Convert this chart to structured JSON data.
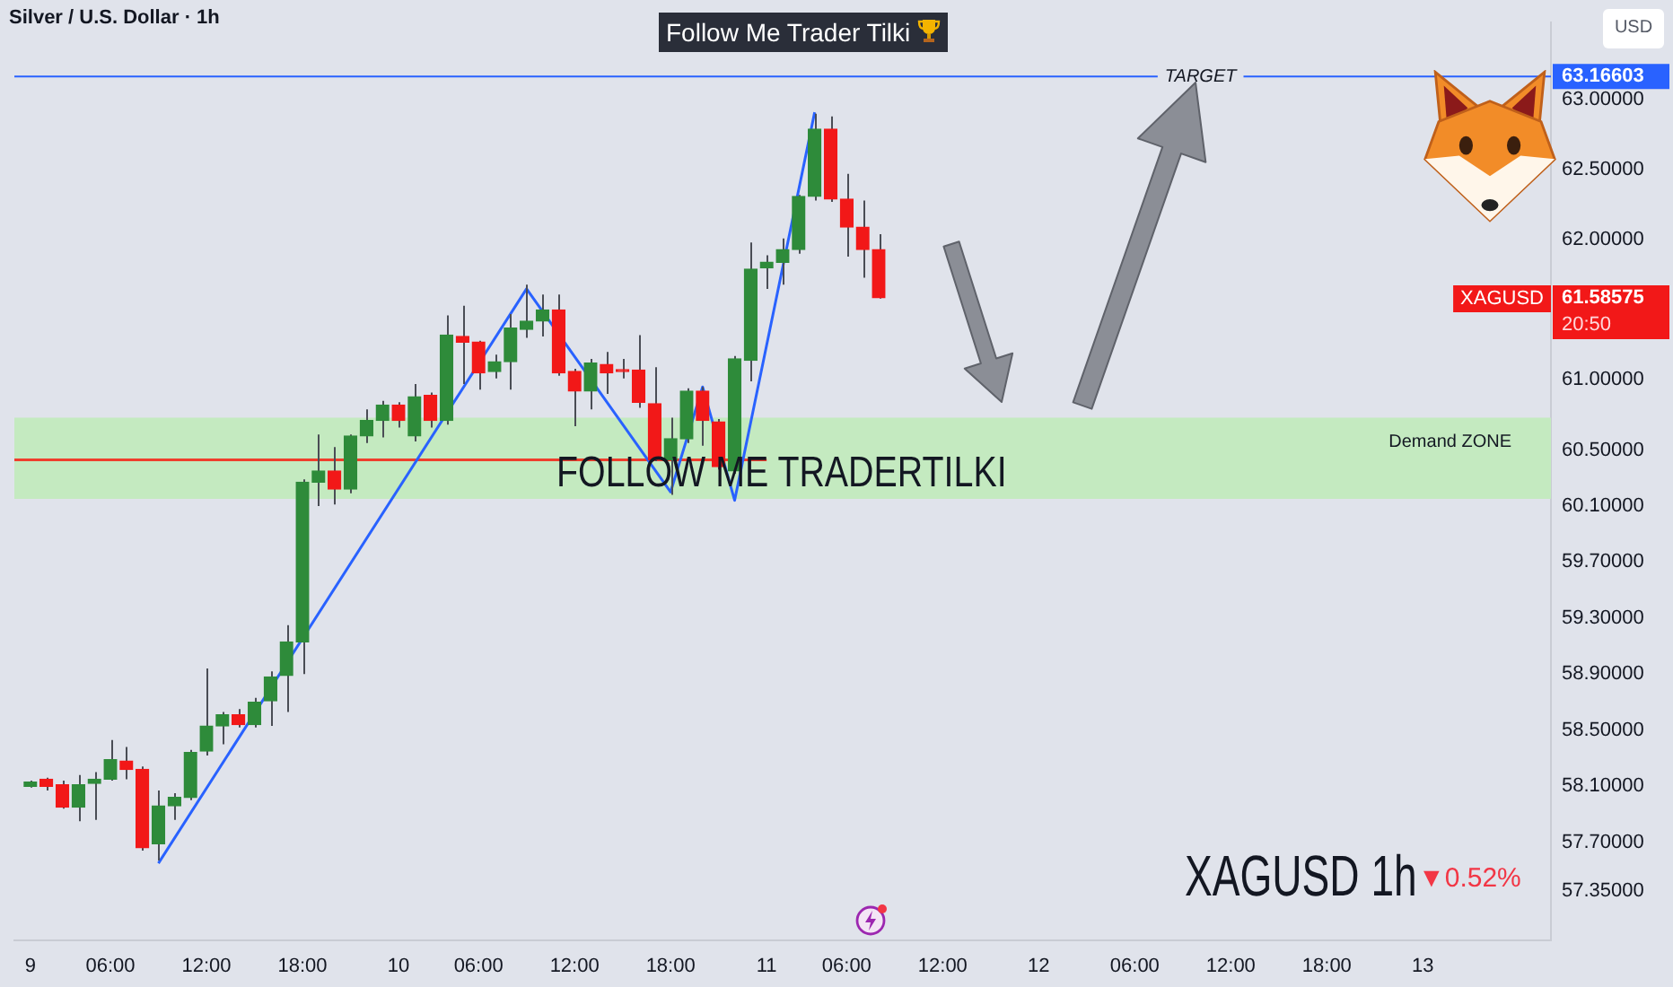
{
  "chart_data": {
    "type": "candlestick",
    "title": "Silver / U.S. Dollar · 1h",
    "subtitle": "Follow Me Trader Tilki",
    "ylabel": "USD",
    "categories": [
      null,
      "9",
      null,
      null,
      null,
      null,
      "06:00",
      null,
      null,
      null,
      null,
      null,
      "12:00",
      null,
      null,
      null,
      null,
      null,
      "18:00",
      null,
      null,
      null,
      null,
      null,
      "10",
      null,
      null,
      null,
      null,
      "06:00",
      null,
      null,
      null,
      null,
      null,
      "12:00",
      null,
      null,
      null,
      null,
      null,
      "18:00",
      null,
      null,
      null,
      null,
      null,
      "11",
      null,
      null,
      null,
      null,
      "06:00",
      null,
      null,
      null,
      null,
      null,
      "12:00",
      null,
      null,
      null,
      null,
      null,
      "12",
      null,
      null,
      null,
      null,
      null,
      "06:00",
      null,
      null,
      null,
      null,
      null,
      "12:00",
      null,
      null,
      null,
      null,
      null,
      "18:00",
      null,
      null,
      null,
      null,
      null,
      "13",
      null,
      null,
      null,
      null,
      null,
      null,
      null,
      null
    ],
    "ohlc": [
      null,
      [
        58.1,
        58.14,
        58.09,
        58.13
      ],
      [
        58.15,
        58.16,
        58.07,
        58.1
      ],
      [
        58.11,
        58.14,
        57.94,
        57.95
      ],
      [
        57.95,
        58.18,
        57.85,
        58.11
      ],
      [
        58.12,
        58.2,
        57.86,
        58.15
      ],
      [
        58.15,
        58.43,
        58.14,
        58.29
      ],
      [
        58.28,
        58.38,
        58.15,
        58.22
      ],
      [
        58.22,
        58.24,
        57.64,
        57.66
      ],
      [
        57.69,
        58.07,
        57.57,
        57.96
      ],
      [
        57.96,
        58.05,
        57.86,
        58.02
      ],
      [
        58.02,
        58.36,
        58.0,
        58.34
      ],
      [
        58.35,
        58.94,
        58.32,
        58.53
      ],
      [
        58.53,
        58.63,
        58.4,
        58.61
      ],
      [
        58.61,
        58.65,
        58.52,
        58.54
      ],
      [
        58.54,
        58.73,
        58.52,
        58.7
      ],
      [
        58.71,
        58.92,
        58.53,
        58.88
      ],
      [
        58.89,
        59.25,
        58.63,
        59.13
      ],
      [
        59.13,
        60.29,
        58.9,
        60.27
      ],
      [
        60.27,
        60.61,
        60.1,
        60.35
      ],
      [
        60.35,
        60.52,
        60.11,
        60.22
      ],
      [
        60.22,
        60.61,
        60.19,
        60.6
      ],
      [
        60.6,
        60.79,
        60.55,
        60.71
      ],
      [
        60.71,
        60.85,
        60.59,
        60.82
      ],
      [
        60.82,
        60.84,
        60.66,
        60.71
      ],
      [
        60.6,
        60.97,
        60.56,
        60.88
      ],
      [
        60.89,
        60.91,
        60.66,
        60.71
      ],
      [
        60.71,
        61.46,
        60.68,
        61.32
      ],
      [
        61.31,
        61.53,
        60.97,
        61.27
      ],
      [
        61.27,
        61.28,
        60.93,
        61.05
      ],
      [
        61.06,
        61.18,
        61.01,
        61.13
      ],
      [
        61.13,
        61.47,
        60.93,
        61.37
      ],
      [
        61.36,
        61.68,
        61.3,
        61.42
      ],
      [
        61.42,
        61.61,
        61.31,
        61.5
      ],
      [
        61.5,
        61.61,
        61.03,
        61.05
      ],
      [
        61.06,
        61.08,
        60.67,
        60.92
      ],
      [
        60.92,
        61.15,
        60.79,
        61.12
      ],
      [
        61.11,
        61.2,
        60.9,
        61.05
      ],
      [
        61.06,
        61.15,
        61.01,
        61.06
      ],
      [
        61.07,
        61.32,
        60.8,
        60.84
      ],
      [
        60.83,
        61.09,
        60.42,
        60.43
      ],
      [
        60.43,
        60.73,
        60.18,
        60.58
      ],
      [
        60.58,
        60.94,
        60.55,
        60.92
      ],
      [
        60.92,
        60.95,
        60.53,
        60.71
      ],
      [
        60.7,
        60.72,
        60.36,
        60.38
      ],
      [
        60.35,
        61.17,
        60.33,
        61.15
      ],
      [
        61.14,
        61.98,
        60.99,
        61.79
      ],
      [
        61.8,
        61.89,
        61.65,
        61.84
      ],
      [
        61.84,
        62.01,
        61.68,
        61.93
      ],
      [
        61.93,
        62.32,
        61.9,
        62.31
      ],
      [
        62.31,
        62.9,
        62.28,
        62.79
      ],
      [
        62.79,
        62.88,
        62.27,
        62.29
      ],
      [
        62.29,
        62.47,
        61.88,
        62.09
      ],
      [
        62.09,
        62.28,
        61.73,
        61.93
      ],
      [
        61.93,
        62.04,
        61.58,
        61.58575
      ],
      null,
      null,
      null,
      null,
      null,
      null,
      null,
      null,
      null,
      null,
      null,
      null,
      null,
      null,
      null,
      null,
      null,
      null,
      null,
      null,
      null,
      null,
      null,
      null,
      null,
      null,
      null,
      null,
      null,
      null,
      null,
      null,
      null,
      null,
      null,
      null,
      null,
      null,
      null,
      null,
      null,
      null
    ],
    "colors": [
      null,
      "#2e8b3a",
      "#f21818",
      "#f21818",
      "#2e8b3a",
      "#2e8b3a",
      "#2e8b3a",
      "#f21818",
      "#f21818",
      "#2e8b3a",
      "#2e8b3a",
      "#2e8b3a",
      "#2e8b3a",
      "#2e8b3a",
      "#f21818",
      "#2e8b3a",
      "#2e8b3a",
      "#2e8b3a",
      "#2e8b3a",
      "#2e8b3a",
      "#f21818",
      "#2e8b3a",
      "#2e8b3a",
      "#2e8b3a",
      "#f21818",
      "#2e8b3a",
      "#f21818",
      "#2e8b3a",
      "#f21818",
      "#f21818",
      "#2e8b3a",
      "#2e8b3a",
      "#2e8b3a",
      "#2e8b3a",
      "#f21818",
      "#f21818",
      "#2e8b3a",
      "#f21818",
      "#f21818",
      "#f21818",
      "#f21818",
      "#2e8b3a",
      "#2e8b3a",
      "#f21818",
      "#f21818",
      "#2e8b3a",
      "#2e8b3a",
      "#2e8b3a",
      "#2e8b3a",
      "#2e8b3a",
      "#2e8b3a",
      "#f21818",
      "#f21818",
      "#f21818",
      "#f21818",
      null,
      null,
      null,
      null,
      null,
      null,
      null,
      null,
      null,
      null,
      null,
      null,
      null,
      null,
      null,
      null,
      null,
      null,
      null,
      null,
      null,
      null,
      null,
      null,
      null,
      null,
      null,
      null,
      null,
      null,
      null,
      null,
      null,
      null,
      null,
      null,
      null,
      null,
      null,
      null,
      null,
      null
    ],
    "series": [
      {
        "type": "line",
        "color": "#2962ff",
        "values": [
          null,
          null,
          null,
          null,
          null,
          null,
          null,
          null,
          null,
          57.55,
          null,
          null,
          null,
          null,
          null,
          null,
          null,
          null,
          null,
          null,
          null,
          null,
          null,
          null,
          null,
          null,
          null,
          null,
          null,
          null,
          null,
          null,
          61.65,
          null,
          null,
          null,
          null,
          null,
          null,
          null,
          null,
          60.2,
          null,
          60.95,
          null,
          60.14,
          null,
          null,
          null,
          null,
          62.91,
          null,
          null,
          null,
          null,
          null,
          null,
          null,
          null,
          null,
          null,
          null,
          null,
          null,
          null,
          null,
          null,
          null,
          null,
          null,
          null,
          null,
          null,
          null,
          null,
          null,
          null,
          null,
          null,
          null,
          null,
          null,
          null,
          null,
          null,
          null,
          null,
          null,
          null,
          null,
          null,
          null,
          null,
          null,
          null,
          null,
          null
        ]
      },
      {
        "type": "line",
        "color": "#ef3e2c",
        "values": [
          60.43,
          60.43,
          60.43,
          60.43,
          60.43,
          60.43,
          60.43,
          60.43,
          60.43,
          60.43,
          60.43,
          60.43,
          60.43,
          60.43,
          60.43,
          60.43,
          60.43,
          60.43,
          60.43,
          60.43,
          60.43,
          60.43,
          60.43,
          60.43,
          60.43,
          60.43,
          60.43,
          60.43,
          60.43,
          60.43,
          60.43,
          60.43,
          60.43,
          60.43,
          60.43,
          60.43,
          60.43,
          60.43,
          60.43,
          60.43,
          60.43,
          60.43,
          60.43,
          60.43,
          60.43,
          null,
          60.43,
          60.43,
          null,
          null,
          null,
          null,
          null,
          null,
          null,
          null,
          null,
          null,
          null,
          null,
          null,
          null,
          null,
          null,
          null,
          null,
          null,
          null,
          null,
          null,
          null,
          null,
          null,
          null,
          null,
          null,
          null,
          null,
          null,
          null,
          null,
          null,
          null,
          null,
          null,
          null,
          null,
          null,
          null,
          null,
          null,
          null,
          null,
          null,
          null,
          null,
          null
        ]
      }
    ],
    "ylim": [
      57.0,
      63.55
    ],
    "yticks": [
      {
        "value": 57.35,
        "label": "57.35000"
      },
      {
        "value": 57.7,
        "label": "57.70000"
      },
      {
        "value": 58.1,
        "label": "58.10000"
      },
      {
        "value": 58.5,
        "label": "58.50000"
      },
      {
        "value": 58.9,
        "label": "58.90000"
      },
      {
        "value": 59.3,
        "label": "59.30000"
      },
      {
        "value": 59.7,
        "label": "59.70000"
      },
      {
        "value": 60.1,
        "label": "60.10000"
      },
      {
        "value": 60.5,
        "label": "60.50000"
      },
      {
        "value": 61,
        "label": "61.00000"
      },
      61.58575,
      {
        "value": 62,
        "label": "62.00000"
      },
      {
        "value": 62.5,
        "label": "62.50000"
      },
      {
        "value": 63,
        "label": "63.00000"
      },
      63.16603
    ],
    "ref_lines": [
      {
        "axis": "y",
        "value": 63.16603,
        "label": "TARGET",
        "color": "#2962ff"
      }
    ],
    "bands": [
      {
        "axis": "y",
        "from": 60.15,
        "to": 60.73,
        "label": "Demand ZONE",
        "color": "#c4eac0"
      }
    ],
    "annotations": [
      "FOLLOW ME TRADERTILKI",
      "XAGUSD",
      "20:50",
      "XAGUSD 1h",
      "▼0.52%"
    ],
    "grid": false,
    "legend": false,
    "marker": "none"
  }
}
